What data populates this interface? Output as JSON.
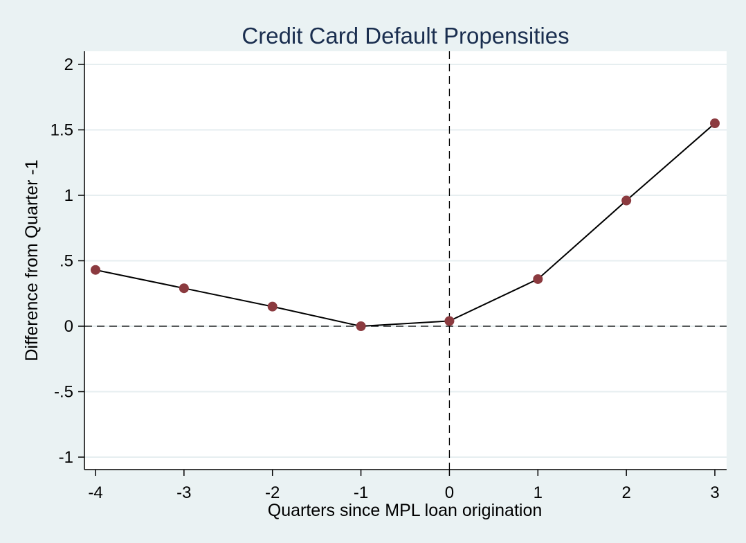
{
  "chart_data": {
    "type": "line",
    "title": "Credit Card Default Propensities",
    "xlabel": "Quarters since MPL loan origination",
    "ylabel": "Difference from Quarter -1",
    "x": [
      -4,
      -3,
      -2,
      -1,
      0,
      1,
      2,
      3
    ],
    "series": [
      {
        "values": [
          0.43,
          0.29,
          0.15,
          0.0,
          0.04,
          0.36,
          0.96,
          1.55
        ]
      }
    ],
    "xlim": [
      -4,
      3
    ],
    "ylim": [
      -1,
      2
    ],
    "x_ticks": [
      -4,
      -3,
      -2,
      -1,
      0,
      1,
      2,
      3
    ],
    "x_tick_labels": [
      "-4",
      "-3",
      "-2",
      "-1",
      "0",
      "1",
      "2",
      "3"
    ],
    "y_ticks": [
      -1,
      -0.5,
      0,
      0.5,
      1,
      1.5,
      2
    ],
    "y_tick_labels": [
      "-1",
      "-.5",
      "0",
      ".5",
      "1",
      "1.5",
      "2"
    ],
    "reference_lines": {
      "x": 0,
      "y": 0
    },
    "grid": true,
    "colors": {
      "line": "#000000",
      "marker": "#8b3a3f",
      "background": "#eaf2f3",
      "plot_background": "#ffffff",
      "grid": "#e6eef0",
      "title": "#1a2e4f"
    }
  }
}
